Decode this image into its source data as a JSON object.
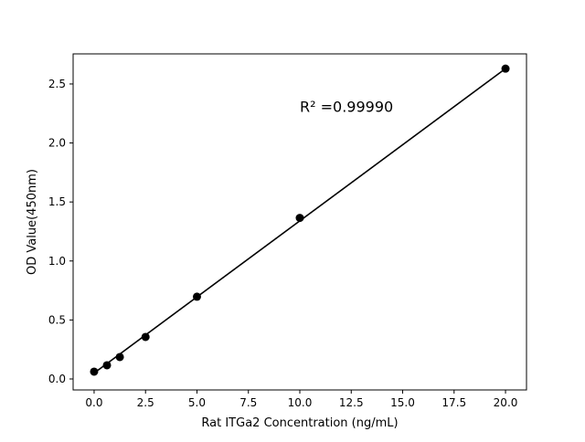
{
  "chart_data": {
    "type": "scatter",
    "title": "",
    "xlabel": "Rat ITGa2 Concentration (ng/mL)",
    "ylabel": "OD Value(450nm)",
    "xlim": [
      -1.02,
      21.02
    ],
    "ylim": [
      -0.093,
      2.755
    ],
    "xticks": [
      0.0,
      2.5,
      5.0,
      7.5,
      10.0,
      12.5,
      15.0,
      17.5,
      20.0
    ],
    "xtick_labels": [
      "0.0",
      "2.5",
      "5.0",
      "7.5",
      "10.0",
      "12.5",
      "15.0",
      "17.5",
      "20.0"
    ],
    "yticks": [
      0.0,
      0.5,
      1.0,
      1.5,
      2.0,
      2.5
    ],
    "ytick_labels": [
      "0.0",
      "0.5",
      "1.0",
      "1.5",
      "2.0",
      "2.5"
    ],
    "grid": false,
    "points": {
      "x": [
        0,
        0.625,
        1.25,
        2.5,
        5,
        10,
        20
      ],
      "y": [
        0.062,
        0.116,
        0.186,
        0.356,
        0.697,
        1.365,
        2.63
      ]
    },
    "fit_line": {
      "x": [
        0,
        20
      ],
      "y": [
        0.05,
        2.63
      ]
    },
    "annotation": {
      "text": "R² =0.99990",
      "x": 10,
      "y": 2.38
    },
    "colors": {
      "points": "#000000",
      "line": "#000000"
    }
  }
}
